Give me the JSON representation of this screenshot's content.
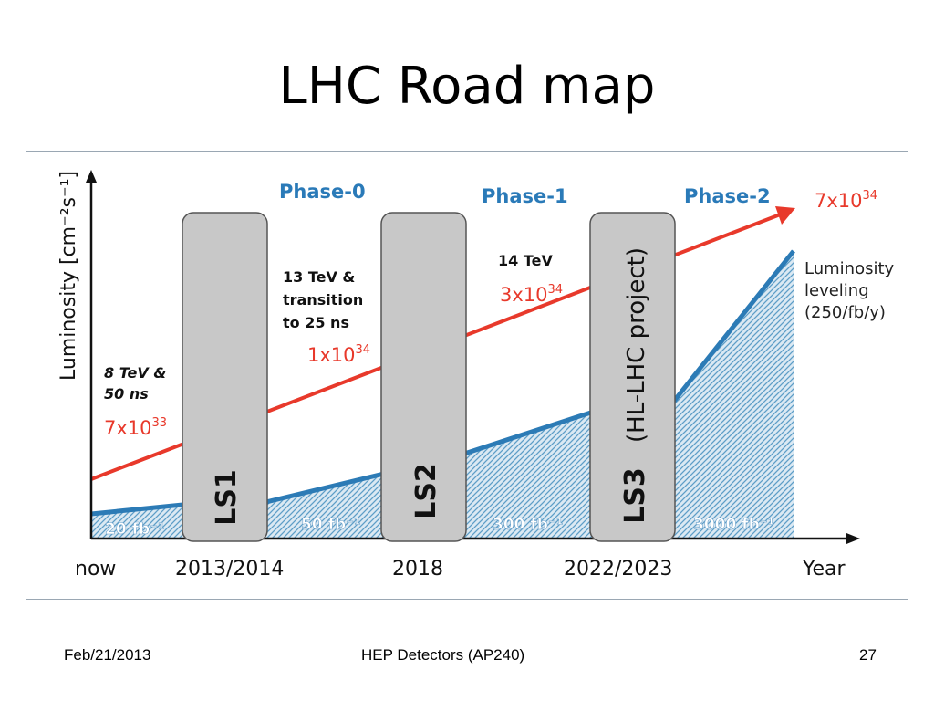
{
  "slide": {
    "title": "LHC Road map",
    "footer_date": "Feb/21/2013",
    "footer_center": "HEP Detectors (AP240)",
    "page_number": "27"
  },
  "diagram": {
    "y_axis_label": "Luminosity [cm⁻²s⁻¹]",
    "x_axis_label": "Year",
    "x_ticks": [
      "now",
      "2013/2014",
      "2018",
      "2022/2023"
    ],
    "phases": [
      "Phase-0",
      "Phase-1",
      "Phase-2"
    ],
    "shutdowns": [
      "LS1",
      "LS2",
      "LS3"
    ],
    "ls3_note": "(HL-LHC project)",
    "conditions": [
      {
        "line1": "8 TeV &",
        "line2": "50 ns",
        "line3": ""
      },
      {
        "line1": "13 TeV &",
        "line2": "transition",
        "line3": "to 25 ns"
      },
      {
        "line1": "14 TeV",
        "line2": "",
        "line3": ""
      }
    ],
    "peak_luminosity": [
      {
        "mantissa": "7x10",
        "exp": "33"
      },
      {
        "mantissa": "1x10",
        "exp": "34"
      },
      {
        "mantissa": "3x10",
        "exp": "34"
      },
      {
        "mantissa": "7x10",
        "exp": "34"
      }
    ],
    "integrated_luminosity": [
      "20 fb⁻¹",
      "50 fb⁻¹",
      "300 fb⁻¹",
      "3000 fb⁻¹"
    ],
    "leveling_note": [
      "Luminosity",
      "leveling",
      "(250/fb/y)"
    ],
    "colors": {
      "peak_line": "#e8392b",
      "integrated_line": "#2c7bb6",
      "phase_text": "#2a7ab8",
      "shutdown_box": "#c8c8c8"
    }
  }
}
